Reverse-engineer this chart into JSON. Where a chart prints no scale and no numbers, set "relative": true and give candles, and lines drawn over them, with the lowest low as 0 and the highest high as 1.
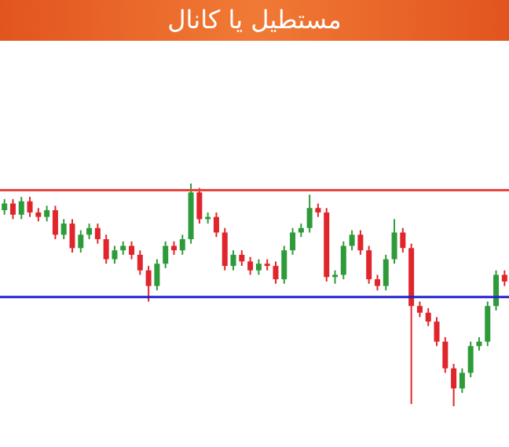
{
  "chart_data": {
    "type": "candlestick",
    "title": "مستطیل یا کانال",
    "relative": true,
    "categories": [
      null,
      null,
      null,
      null,
      null,
      null,
      null,
      null,
      null,
      null,
      null,
      null,
      null,
      null,
      null,
      null,
      null,
      null,
      null,
      null,
      null,
      null,
      null,
      null,
      null,
      null,
      null,
      null,
      null,
      null,
      null,
      null,
      null,
      null,
      null,
      null,
      null,
      null,
      null,
      null,
      null,
      null,
      null,
      null,
      null,
      null,
      null,
      null,
      null,
      null,
      null,
      null,
      null,
      null,
      null,
      null,
      null,
      null,
      null,
      null
    ],
    "ohlc": [
      [
        0.88,
        0.93,
        0.86,
        0.91
      ],
      [
        0.91,
        0.93,
        0.84,
        0.86
      ],
      [
        0.86,
        0.94,
        0.84,
        0.92
      ],
      [
        0.92,
        0.94,
        0.85,
        0.87
      ],
      [
        0.87,
        0.89,
        0.83,
        0.85
      ],
      [
        0.85,
        0.9,
        0.83,
        0.88
      ],
      [
        0.88,
        0.9,
        0.75,
        0.77
      ],
      [
        0.77,
        0.84,
        0.75,
        0.82
      ],
      [
        0.82,
        0.84,
        0.69,
        0.71
      ],
      [
        0.71,
        0.79,
        0.69,
        0.77
      ],
      [
        0.77,
        0.82,
        0.75,
        0.8
      ],
      [
        0.8,
        0.82,
        0.73,
        0.75
      ],
      [
        0.75,
        0.77,
        0.64,
        0.66
      ],
      [
        0.66,
        0.72,
        0.64,
        0.7
      ],
      [
        0.7,
        0.74,
        0.68,
        0.72
      ],
      [
        0.72,
        0.74,
        0.66,
        0.68
      ],
      [
        0.68,
        0.7,
        0.59,
        0.61
      ],
      [
        0.61,
        0.63,
        0.47,
        0.54
      ],
      [
        0.54,
        0.66,
        0.52,
        0.64
      ],
      [
        0.64,
        0.74,
        0.62,
        0.72
      ],
      [
        0.72,
        0.74,
        0.68,
        0.7
      ],
      [
        0.7,
        0.77,
        0.68,
        0.75
      ],
      [
        0.75,
        1,
        0.73,
        0.96
      ],
      [
        0.96,
        0.98,
        0.82,
        0.84
      ],
      [
        0.84,
        0.87,
        0.82,
        0.85
      ],
      [
        0.85,
        0.87,
        0.76,
        0.78
      ],
      [
        0.78,
        0.8,
        0.61,
        0.63
      ],
      [
        0.63,
        0.7,
        0.61,
        0.68
      ],
      [
        0.68,
        0.7,
        0.63,
        0.65
      ],
      [
        0.65,
        0.67,
        0.59,
        0.61
      ],
      [
        0.61,
        0.66,
        0.59,
        0.64
      ],
      [
        0.64,
        0.66,
        0.61,
        0.63
      ],
      [
        0.63,
        0.65,
        0.55,
        0.57
      ],
      [
        0.57,
        0.72,
        0.55,
        0.7
      ],
      [
        0.7,
        0.8,
        0.68,
        0.78
      ],
      [
        0.78,
        0.82,
        0.76,
        0.8
      ],
      [
        0.8,
        0.95,
        0.78,
        0.89
      ],
      [
        0.89,
        0.91,
        0.85,
        0.87
      ],
      [
        0.87,
        0.89,
        0.56,
        0.58
      ],
      [
        0.58,
        0.61,
        0.55,
        0.59
      ],
      [
        0.59,
        0.74,
        0.57,
        0.72
      ],
      [
        0.72,
        0.79,
        0.7,
        0.77
      ],
      [
        0.77,
        0.79,
        0.68,
        0.7
      ],
      [
        0.7,
        0.72,
        0.55,
        0.57
      ],
      [
        0.57,
        0.59,
        0.52,
        0.54
      ],
      [
        0.54,
        0.68,
        0.52,
        0.66
      ],
      [
        0.66,
        0.84,
        0.64,
        0.78
      ],
      [
        0.78,
        0.8,
        0.69,
        0.71
      ],
      [
        0.71,
        0.73,
        0.01,
        0.45
      ],
      [
        0.45,
        0.47,
        0.4,
        0.42
      ],
      [
        0.42,
        0.44,
        0.36,
        0.38
      ],
      [
        0.38,
        0.4,
        0.27,
        0.29
      ],
      [
        0.29,
        0.31,
        0.15,
        0.17
      ],
      [
        0.17,
        0.19,
        0,
        0.08
      ],
      [
        0.08,
        0.17,
        0.06,
        0.15
      ],
      [
        0.15,
        0.29,
        0.13,
        0.27
      ],
      [
        0.27,
        0.31,
        0.25,
        0.29
      ],
      [
        0.29,
        0.47,
        0.27,
        0.45
      ],
      [
        0.45,
        0.61,
        0.43,
        0.59
      ],
      [
        0.59,
        0.61,
        0.54,
        0.56
      ]
    ],
    "ref_lines": [
      {
        "axis": "y",
        "value": 0.97,
        "color": "#e8453c"
      },
      {
        "axis": "y",
        "value": 0.49,
        "color": "#2323c8"
      }
    ]
  }
}
